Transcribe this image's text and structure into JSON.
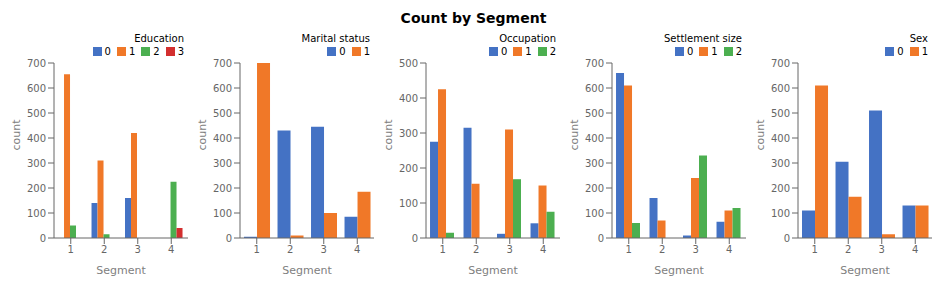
{
  "title": "Count by Segment",
  "chart_data": [
    {
      "type": "bar",
      "legend_title": "Education",
      "xlabel": "Segment",
      "ylabel": "count",
      "categories": [
        "1",
        "2",
        "3",
        "4"
      ],
      "series": [
        {
          "name": "0",
          "color": "#4472c4",
          "values": [
            0,
            140,
            160,
            0
          ]
        },
        {
          "name": "1",
          "color": "#f07828",
          "values": [
            655,
            310,
            420,
            0
          ]
        },
        {
          "name": "2",
          "color": "#4caf50",
          "values": [
            50,
            15,
            0,
            225
          ]
        },
        {
          "name": "3",
          "color": "#d32f2f",
          "values": [
            0,
            0,
            0,
            40
          ]
        }
      ],
      "ylim": [
        0,
        700
      ],
      "yticks": [
        0,
        100,
        200,
        300,
        400,
        500,
        600,
        700
      ],
      "grid": false,
      "legend": "upper right"
    },
    {
      "type": "bar",
      "legend_title": "Marital status",
      "xlabel": "Segment",
      "ylabel": "count",
      "categories": [
        "1",
        "2",
        "3",
        "4"
      ],
      "series": [
        {
          "name": "0",
          "color": "#4472c4",
          "values": [
            5,
            430,
            445,
            85
          ]
        },
        {
          "name": "1",
          "color": "#f07828",
          "values": [
            700,
            10,
            100,
            185
          ]
        }
      ],
      "ylim": [
        0,
        700
      ],
      "yticks": [
        0,
        100,
        200,
        300,
        400,
        500,
        600,
        700
      ],
      "grid": false,
      "legend": "upper right"
    },
    {
      "type": "bar",
      "legend_title": "Occupation",
      "xlabel": "Segment",
      "ylabel": "count",
      "categories": [
        "1",
        "2",
        "3",
        "4"
      ],
      "series": [
        {
          "name": "0",
          "color": "#4472c4",
          "values": [
            275,
            315,
            12,
            42
          ]
        },
        {
          "name": "1",
          "color": "#f07828",
          "values": [
            425,
            155,
            310,
            150
          ]
        },
        {
          "name": "2",
          "color": "#4caf50",
          "values": [
            15,
            0,
            168,
            75
          ]
        }
      ],
      "ylim": [
        0,
        500
      ],
      "yticks": [
        0,
        100,
        200,
        300,
        400,
        500
      ],
      "grid": false,
      "legend": "upper right"
    },
    {
      "type": "bar",
      "legend_title": "Settlement size",
      "xlabel": "Segment",
      "ylabel": "count",
      "categories": [
        "1",
        "2",
        "3",
        "4"
      ],
      "series": [
        {
          "name": "0",
          "color": "#4472c4",
          "values": [
            660,
            160,
            10,
            65
          ]
        },
        {
          "name": "1",
          "color": "#f07828",
          "values": [
            610,
            70,
            240,
            110
          ]
        },
        {
          "name": "2",
          "color": "#4caf50",
          "values": [
            60,
            0,
            330,
            120
          ]
        }
      ],
      "ylim": [
        0,
        700
      ],
      "yticks": [
        0,
        100,
        200,
        300,
        400,
        500,
        600,
        700
      ],
      "grid": false,
      "legend": "upper right"
    },
    {
      "type": "bar",
      "legend_title": "Sex",
      "xlabel": "Segment",
      "ylabel": "count",
      "categories": [
        "1",
        "2",
        "3",
        "4"
      ],
      "series": [
        {
          "name": "0",
          "color": "#4472c4",
          "values": [
            110,
            305,
            510,
            130
          ]
        },
        {
          "name": "1",
          "color": "#f07828",
          "values": [
            610,
            165,
            15,
            130
          ]
        }
      ],
      "ylim": [
        0,
        700
      ],
      "yticks": [
        0,
        100,
        200,
        300,
        400,
        500,
        600,
        700
      ],
      "grid": false,
      "legend": "upper right"
    }
  ]
}
